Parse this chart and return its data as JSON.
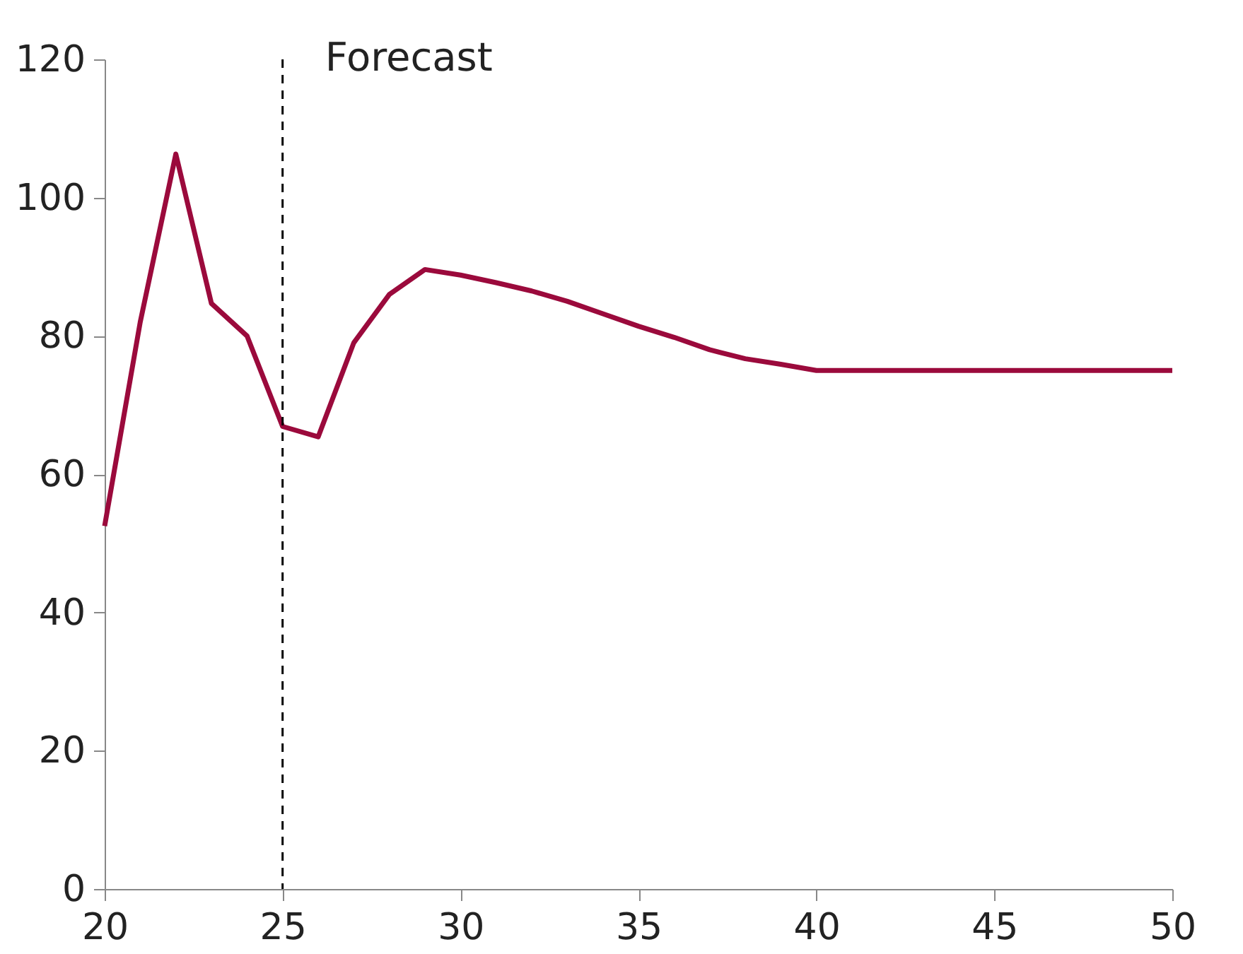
{
  "chart_data": {
    "type": "line",
    "x": [
      20,
      21,
      22,
      23,
      24,
      25,
      26,
      27,
      28,
      29,
      30,
      31,
      32,
      33,
      34,
      35,
      36,
      37,
      38,
      39,
      40,
      50
    ],
    "series": [
      {
        "color": "#9b0a3c",
        "values": [
          52.5,
          82,
          106.3,
          84.7,
          80,
          66.9,
          65.4,
          79,
          86,
          89.6,
          88.8,
          87.7,
          86.5,
          85,
          83.2,
          81.4,
          79.8,
          78,
          76.7,
          75.9,
          75,
          75
        ]
      }
    ],
    "xlim": [
      20,
      50
    ],
    "xticks": [
      20,
      25,
      30,
      35,
      40,
      45,
      50
    ],
    "ylim": [
      0,
      120
    ],
    "yticks": [
      0,
      20,
      40,
      60,
      80,
      100,
      120
    ],
    "ref_lines": [
      {
        "axis": "x",
        "value": 25,
        "label": "Forecast",
        "color": "#000000",
        "line_style": "dashed"
      }
    ],
    "grid": false,
    "marker": "none",
    "line_style": "solid"
  }
}
